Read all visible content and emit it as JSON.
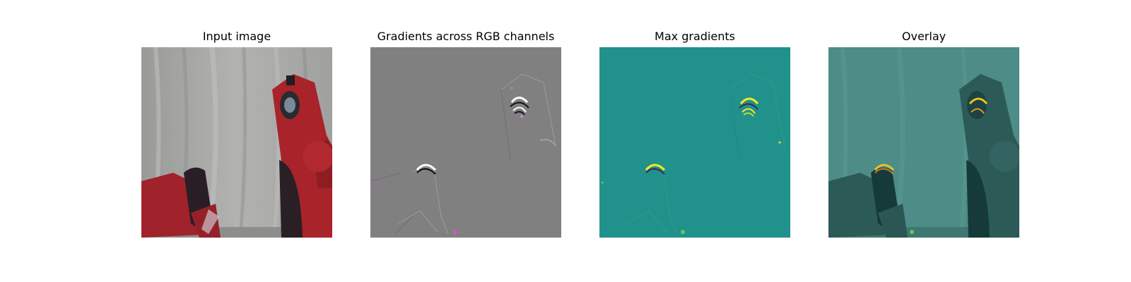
{
  "panels": [
    {
      "title": "Input image"
    },
    {
      "title": "Gradients across RGB channels"
    },
    {
      "title": "Max gradients"
    },
    {
      "title": "Overlay"
    }
  ],
  "colors": {
    "curtain": "#a3a4a2",
    "robot_red": "#a8242a",
    "robot_dark": "#2b1f26",
    "gradient_gray": "#808080",
    "viridis_teal": "#21918c",
    "viridis_yellow": "#fde725",
    "viridis_dark": "#3b2a5a",
    "overlay_teal": "#4e8c87"
  }
}
